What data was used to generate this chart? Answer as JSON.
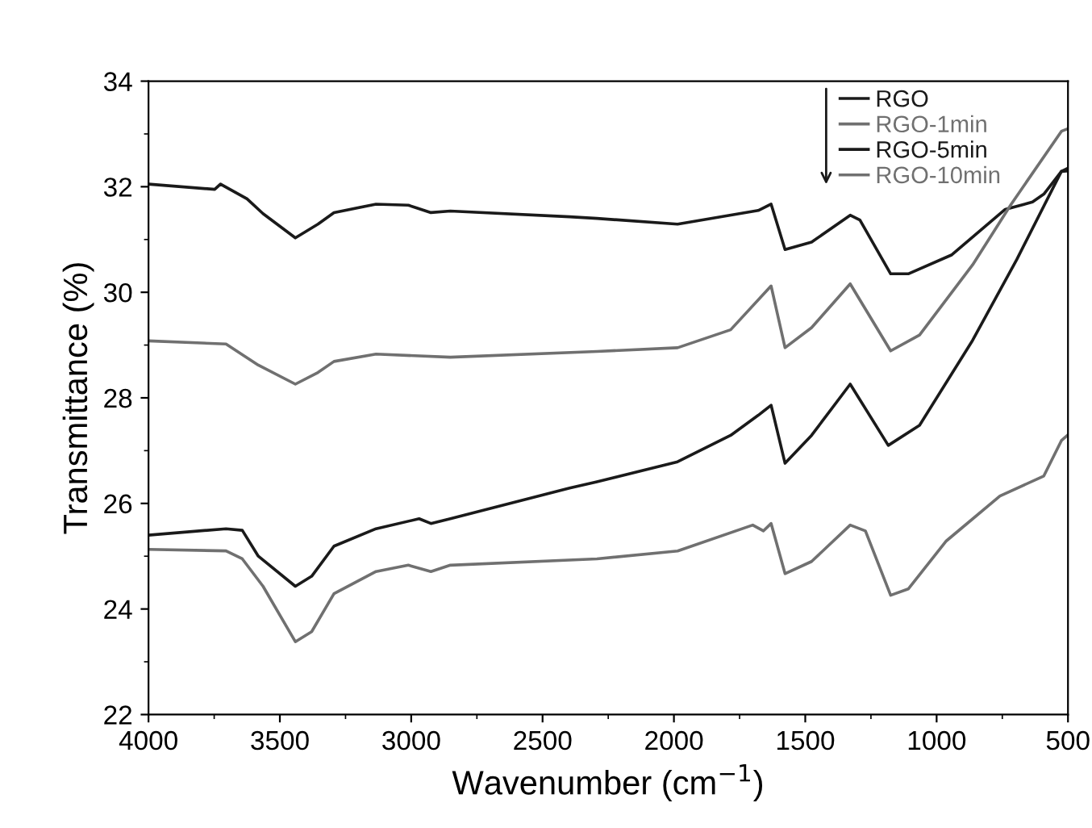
{
  "chart_data": {
    "type": "line",
    "xlabel": "Wavenumber (cm$^{−1}$)",
    "ylabel": "Transmittance (%)",
    "xlim": [
      4000,
      500
    ],
    "xticks": [
      4000,
      3500,
      3000,
      2500,
      2000,
      1500,
      1000,
      500
    ],
    "ylim": [
      22,
      34
    ],
    "yticks": [
      22,
      24,
      26,
      28,
      30,
      32,
      34
    ],
    "grid": false,
    "legend": "top right",
    "marker": "none",
    "line_style": "solid",
    "series": [
      {
        "name": "RGO",
        "color": "#1a1a1a",
        "x": [
          4000,
          3748,
          3726,
          3625,
          3564,
          3441,
          3355,
          3294,
          3134,
          3011,
          2925,
          2851,
          2397,
          2293,
          1986,
          1679,
          1630,
          1577,
          1476,
          1329,
          1292,
          1175,
          1108,
          942,
          739,
          635,
          592,
          525,
          500
        ],
        "values": [
          32.05,
          31.95,
          32.05,
          31.77,
          31.49,
          31.03,
          31.29,
          31.51,
          31.67,
          31.65,
          31.51,
          31.54,
          31.43,
          31.4,
          31.29,
          31.55,
          31.67,
          30.81,
          30.95,
          31.46,
          31.37,
          30.35,
          30.35,
          30.71,
          31.57,
          31.71,
          31.86,
          32.29,
          32.3
        ]
      },
      {
        "name": "RGO-1min",
        "color": "#707070",
        "x": [
          4000,
          3705,
          3582,
          3441,
          3355,
          3294,
          3134,
          2851,
          2293,
          1986,
          1784,
          1630,
          1577,
          1476,
          1329,
          1175,
          1065,
          863,
          716,
          525,
          500
        ],
        "values": [
          29.08,
          29.02,
          28.62,
          28.26,
          28.48,
          28.69,
          28.83,
          28.77,
          28.88,
          28.95,
          29.29,
          30.12,
          28.95,
          29.33,
          30.16,
          28.89,
          29.19,
          30.52,
          31.67,
          33.05,
          33.1
        ]
      },
      {
        "name": "RGO-5min",
        "color": "#1a1a1a",
        "x": [
          4000,
          3705,
          3643,
          3582,
          3441,
          3379,
          3294,
          3134,
          2970,
          2925,
          2851,
          2397,
          2293,
          1986,
          1784,
          1679,
          1630,
          1577,
          1476,
          1329,
          1184,
          1065,
          863,
          695,
          525,
          500
        ],
        "values": [
          25.4,
          25.52,
          25.49,
          25.0,
          24.43,
          24.62,
          25.19,
          25.52,
          25.71,
          25.62,
          25.71,
          26.29,
          26.41,
          26.79,
          27.29,
          27.67,
          27.86,
          26.76,
          27.29,
          28.26,
          27.1,
          27.48,
          29.09,
          30.62,
          32.29,
          32.35
        ]
      },
      {
        "name": "RGO-10min",
        "color": "#707070",
        "x": [
          4000,
          3705,
          3643,
          3564,
          3441,
          3379,
          3294,
          3134,
          3011,
          2925,
          2851,
          2293,
          1986,
          1700,
          1659,
          1630,
          1577,
          1476,
          1329,
          1271,
          1175,
          1108,
          963,
          759,
          592,
          525,
          500
        ],
        "values": [
          25.13,
          25.1,
          24.95,
          24.43,
          23.38,
          23.57,
          24.29,
          24.71,
          24.83,
          24.71,
          24.83,
          24.95,
          25.1,
          25.59,
          25.48,
          25.62,
          24.67,
          24.9,
          25.59,
          25.48,
          24.26,
          24.38,
          25.29,
          26.14,
          26.52,
          27.19,
          27.3
        ]
      }
    ]
  }
}
